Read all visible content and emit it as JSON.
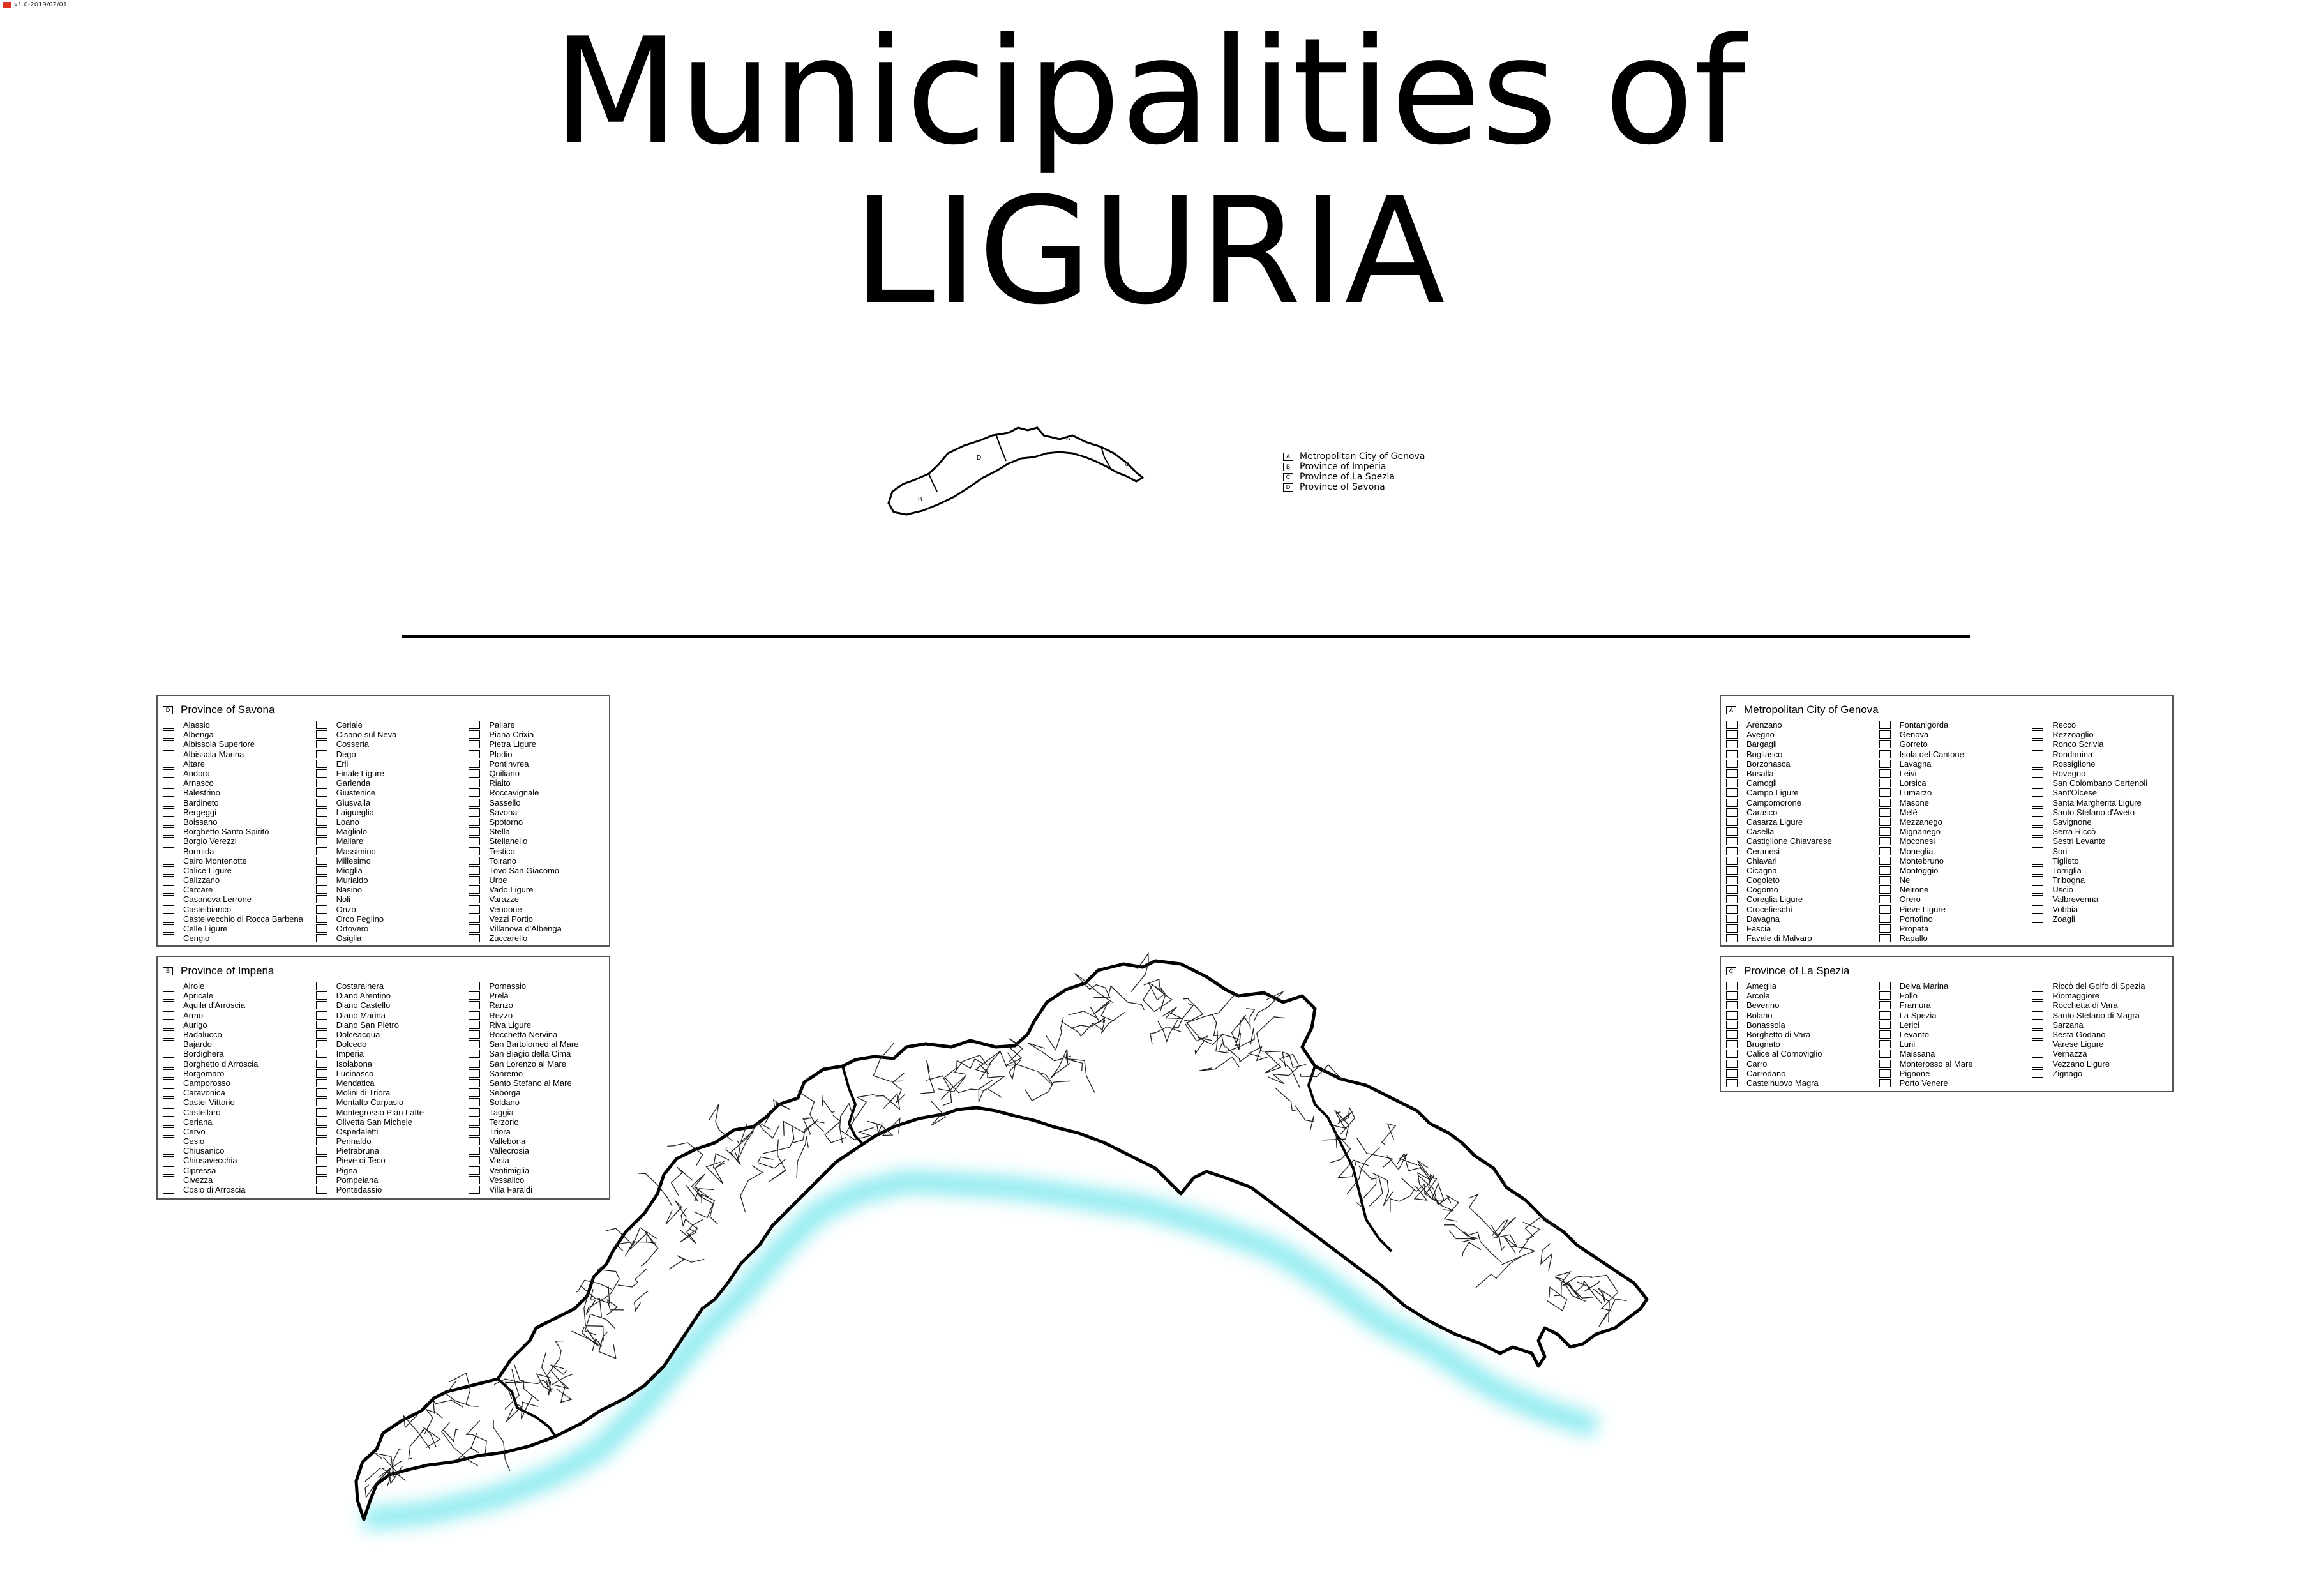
{
  "version": "v1.0-2019/02/01",
  "title": {
    "line1": "Municipalities of",
    "line2": "LIGURIA"
  },
  "colors": {
    "outline": "#000000",
    "sea_glow": "#7fe8ee",
    "background": "#ffffff"
  },
  "mini_map": {
    "labels": [
      "A",
      "B",
      "C",
      "D"
    ]
  },
  "mini_legend": [
    {
      "key": "A",
      "label": "Metropolitan City of Genova"
    },
    {
      "key": "B",
      "label": "Province of Imperia"
    },
    {
      "key": "C",
      "label": "Province of La Spezia"
    },
    {
      "key": "D",
      "label": "Province of Savona"
    }
  ],
  "panels": {
    "savona": {
      "key": "D",
      "title": "Province of Savona",
      "columns": [
        [
          "Alassio",
          "Albenga",
          "Albissola Superiore",
          "Albissola Marina",
          "Altare",
          "Andora",
          "Arnasco",
          "Balestrino",
          "Bardineto",
          "Bergeggi",
          "Boissano",
          "Borghetto Santo Spirito",
          "Borgio Verezzi",
          "Bormida",
          "Cairo Montenotte",
          "Calice Ligure",
          "Calizzano",
          "Carcare",
          "Casanova Lerrone",
          "Castelbianco",
          "Castelvecchio di Rocca Barbena",
          "Celle Ligure",
          "Cengio"
        ],
        [
          "Ceriale",
          "Cisano sul Neva",
          "Cosseria",
          "Dego",
          "Erli",
          "Finale Ligure",
          "Garlenda",
          "Giustenice",
          "Giusvalla",
          "Laigueglia",
          "Loano",
          "Magliolo",
          "Mallare",
          "Massimino",
          "Millesimo",
          "Mioglia",
          "Murialdo",
          "Nasino",
          "Noli",
          "Onzo",
          "Orco Feglino",
          "Ortovero",
          "Osiglia"
        ],
        [
          "Pallare",
          "Piana Crixia",
          "Pietra Ligure",
          "Plodio",
          "Pontinvrea",
          "Quiliano",
          "Rialto",
          "Roccavignale",
          "Sassello",
          "Savona",
          "Spotorno",
          "Stella",
          "Stellanello",
          "Testico",
          "Toirano",
          "Tovo San Giacomo",
          "Urbe",
          "Vado Ligure",
          "Varazze",
          "Vendone",
          "Vezzi Portio",
          "Villanova d'Albenga",
          "Zuccarello"
        ]
      ]
    },
    "imperia": {
      "key": "B",
      "title": "Province of Imperia",
      "columns": [
        [
          "Airole",
          "Apricale",
          "Aquila d'Arroscia",
          "Armo",
          "Aurigo",
          "Badalucco",
          "Bajardo",
          "Bordighera",
          "Borghetto d'Arroscia",
          "Borgomaro",
          "Camporosso",
          "Caravonica",
          "Castel Vittorio",
          "Castellaro",
          "Ceriana",
          "Cervo",
          "Cesio",
          "Chiusanico",
          "Chiusavecchia",
          "Cipressa",
          "Civezza",
          "Cosio di Arroscia"
        ],
        [
          "Costarainera",
          "Diano Arentino",
          "Diano Castello",
          "Diano Marina",
          "Diano San Pietro",
          "Dolceacqua",
          "Dolcedo",
          "Imperia",
          "Isolabona",
          "Lucinasco",
          "Mendatica",
          "Molini di Triora",
          "Montalto Carpasio",
          "Montegrosso Pian Latte",
          "Olivetta San Michele",
          "Ospedaletti",
          "Perinaldo",
          "Pietrabruna",
          "Pieve di Teco",
          "Pigna",
          "Pompeiana",
          "Pontedassio"
        ],
        [
          "Pornassio",
          "Prelà",
          "Ranzo",
          "Rezzo",
          "Riva Ligure",
          "Rocchetta Nervina",
          "San Bartolomeo al Mare",
          "San Biagio della Cima",
          "San Lorenzo al Mare",
          "Sanremo",
          "Santo Stefano al Mare",
          "Seborga",
          "Soldano",
          "Taggia",
          "Terzorio",
          "Triora",
          "Vallebona",
          "Vallecrosia",
          "Vasia",
          "Ventimiglia",
          "Vessalico",
          "Villa Faraldi"
        ]
      ]
    },
    "genova": {
      "key": "A",
      "title": "Metropolitan City of Genova",
      "columns": [
        [
          "Arenzano",
          "Avegno",
          "Bargagli",
          "Bogliasco",
          "Borzonasca",
          "Busalla",
          "Camogli",
          "Campo Ligure",
          "Campomorone",
          "Carasco",
          "Casarza Ligure",
          "Casella",
          "Castiglione Chiavarese",
          "Ceranesi",
          "Chiavari",
          "Cicagna",
          "Cogoleto",
          "Cogorno",
          "Coreglia Ligure",
          "Crocefieschi",
          "Davagna",
          "Fascia",
          "Favale di Malvaro"
        ],
        [
          "Fontanigorda",
          "Genova",
          "Gorreto",
          "Isola del Cantone",
          "Lavagna",
          "Leivi",
          "Lorsica",
          "Lumarzo",
          "Masone",
          "Melè",
          "Mezzanego",
          "Mignanego",
          "Moconesi",
          "Moneglia",
          "Montebruno",
          "Montoggio",
          "Ne",
          "Neirone",
          "Orero",
          "Pieve Ligure",
          "Portofino",
          "Propata",
          "Rapallo"
        ],
        [
          "Recco",
          "Rezzoaglio",
          "Ronco Scrivia",
          "Rondanina",
          "Rossiglione",
          "Rovegno",
          "San Colombano Certenoli",
          "Sant'Olcese",
          "Santa Margherita Ligure",
          "Santo Stefano d'Aveto",
          "Savignone",
          "Serra Riccò",
          "Sestri Levante",
          "Sori",
          "Tiglieto",
          "Torriglia",
          "Tribogna",
          "Uscio",
          "Valbrevenna",
          "Vobbia",
          "Zoagli"
        ]
      ]
    },
    "laspezia": {
      "key": "C",
      "title": "Province of La Spezia",
      "columns": [
        [
          "Ameglia",
          "Arcola",
          "Beverino",
          "Bolano",
          "Bonassola",
          "Borghetto di Vara",
          "Brugnato",
          "Calice al Cornoviglio",
          "Carro",
          "Carrodano",
          "Castelnuovo Magra"
        ],
        [
          "Deiva Marina",
          "Follo",
          "Framura",
          "La Spezia",
          "Lerici",
          "Levanto",
          "Luni",
          "Maissana",
          "Monterosso al Mare",
          "Pignone",
          "Porto Venere"
        ],
        [
          "Riccò del Golfo di Spezia",
          "Riomaggiore",
          "Rocchetta di Vara",
          "Santo Stefano di Magra",
          "Sarzana",
          "Sesta Godano",
          "Varese Ligure",
          "Vernazza",
          "Vezzano Ligure",
          "Zignago"
        ]
      ]
    }
  }
}
